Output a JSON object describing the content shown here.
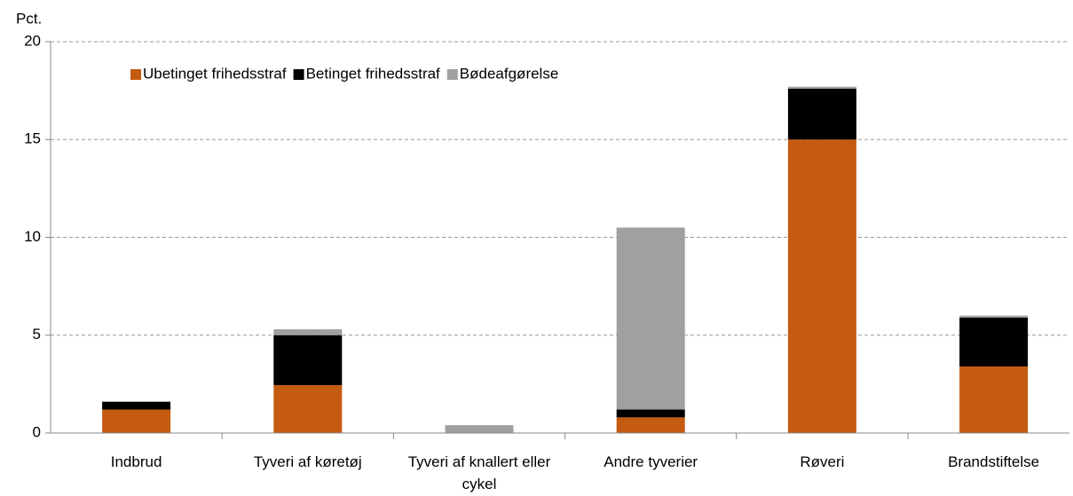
{
  "chart_data": {
    "type": "stacked_bar",
    "y_label": "Pct.",
    "categories": [
      "Indbrud",
      "Tyveri af køretøj",
      "Tyveri af knallert eller cykel",
      "Andre tyverier",
      "Røveri",
      "Brandstiftelse"
    ],
    "series": [
      {
        "name": "Ubetinget frihedsstraf",
        "color": "#c55a11",
        "values": [
          1.2,
          2.45,
          0,
          0.8,
          15.0,
          3.4
        ]
      },
      {
        "name": "Betinget frihedsstraf",
        "color": "#000000",
        "values": [
          0.4,
          2.55,
          0,
          0.4,
          2.6,
          2.5
        ]
      },
      {
        "name": "Bødeafgørelse",
        "color": "#a0a0a0",
        "values": [
          0,
          0.3,
          0.4,
          9.3,
          0.1,
          0.1
        ]
      }
    ],
    "ylim": [
      0,
      20
    ],
    "yticks": [
      0,
      5,
      10,
      15,
      20
    ],
    "grid": true,
    "legend": "upper left"
  }
}
